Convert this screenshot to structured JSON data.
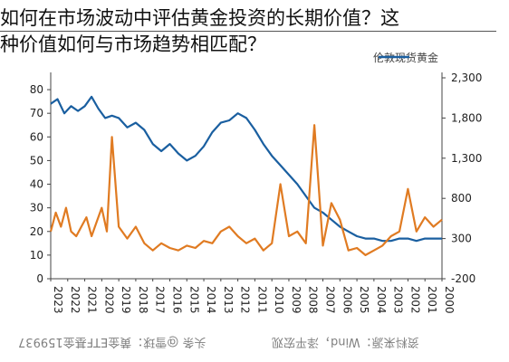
{
  "caption": {
    "line1": "如何在市场波动中评估黄金投资的长期价值？这",
    "line2": "种价值如何与市场趋势相匹配？"
  },
  "footer": {
    "source": "资料来源：Wind，泽平宏观",
    "watermark": "头条 @雪球：黄金ETF基金159937"
  },
  "legend": {
    "series_label": "伦敦现货黄金"
  },
  "colors": {
    "blue": "#1a5fa0",
    "orange": "#e07b22",
    "axis": "#444444"
  },
  "chart_data": {
    "type": "line",
    "x_tick_labels": [
      "2023",
      "2022",
      "2021",
      "2020",
      "2019",
      "2018",
      "2017",
      "2016",
      "2015",
      "2014",
      "2013",
      "2012",
      "2011",
      "2010",
      "2009",
      "2008",
      "2007",
      "2006",
      "2005",
      "2004",
      "2003",
      "2002",
      "2001",
      "2000"
    ],
    "left_axis": {
      "ticks": [
        "0",
        "10",
        "20",
        "30",
        "40",
        "50",
        "60",
        "70",
        "80"
      ],
      "ylim": [
        0,
        85
      ]
    },
    "right_axis": {
      "ticks": [
        "-200",
        "300",
        "800",
        "1,300",
        "1,800",
        "2,300"
      ],
      "ylim": [
        -200,
        2300
      ]
    },
    "x_range": [
      0,
      23
    ],
    "series": [
      {
        "axis": "left",
        "color": "#1a5fa0",
        "x": [
          0,
          0.4,
          0.8,
          1.2,
          1.6,
          2,
          2.4,
          2.8,
          3.2,
          3.6,
          4,
          4.5,
          5,
          5.5,
          6,
          6.5,
          7,
          7.5,
          8,
          8.5,
          9,
          9.5,
          10,
          10.5,
          11,
          11.5,
          12,
          12.5,
          13,
          13.5,
          14,
          14.5,
          15,
          15.5,
          16,
          16.5,
          17,
          17.5,
          18,
          18.5,
          19,
          19.5,
          20,
          20.5,
          21,
          21.5,
          22,
          22.5,
          23
        ],
        "y": [
          74,
          76,
          70,
          73,
          71,
          73,
          77,
          72,
          68,
          69,
          68,
          64,
          66,
          63,
          57,
          54,
          57,
          53,
          50,
          52,
          56,
          62,
          66,
          67,
          70,
          68,
          63,
          57,
          52,
          48,
          44,
          40,
          35,
          30,
          28,
          25,
          22,
          20,
          18,
          17,
          17,
          16,
          16,
          17,
          17,
          16,
          17,
          17,
          17
        ]
      },
      {
        "axis": "left",
        "color": "#e07b22",
        "x": [
          0,
          0.3,
          0.6,
          0.9,
          1.2,
          1.5,
          1.8,
          2.1,
          2.4,
          2.7,
          3,
          3.3,
          3.6,
          4,
          4.5,
          5,
          5.5,
          6,
          6.5,
          7,
          7.5,
          8,
          8.5,
          9,
          9.5,
          10,
          10.5,
          11,
          11.5,
          12,
          12.5,
          13,
          13.5,
          14,
          14.5,
          15,
          15.5,
          16,
          16.5,
          17,
          17.5,
          18,
          18.5,
          19,
          19.5,
          20,
          20.5,
          21,
          21.5,
          22,
          22.5,
          23
        ],
        "y": [
          20,
          28,
          22,
          30,
          20,
          18,
          22,
          26,
          18,
          24,
          30,
          20,
          60,
          22,
          17,
          22,
          15,
          12,
          15,
          13,
          12,
          14,
          13,
          16,
          15,
          20,
          22,
          18,
          15,
          17,
          12,
          15,
          40,
          18,
          20,
          15,
          65,
          14,
          32,
          25,
          12,
          13,
          10,
          12,
          14,
          18,
          20,
          38,
          20,
          26,
          22,
          25
        ]
      }
    ]
  }
}
